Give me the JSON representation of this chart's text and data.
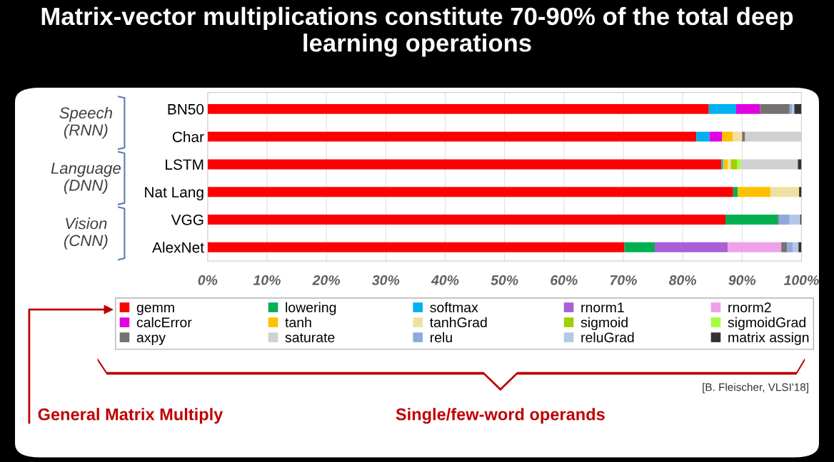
{
  "chart_data": {
    "type": "bar",
    "orientation": "horizontal",
    "stacked": true,
    "title": "Matrix-vector multiplications constitute 70-90% of the total deep learning operations",
    "categories": [
      "BN50",
      "Char",
      "LSTM",
      "Nat Lang",
      "VGG",
      "AlexNet"
    ],
    "series": [
      {
        "name": "gemm",
        "color": "#ff0000",
        "values": [
          84.4,
          82.3,
          86.5,
          88.5,
          87.2,
          70.2
        ]
      },
      {
        "name": "lowering",
        "color": "#00b050",
        "values": [
          null,
          null,
          null,
          0.8,
          8.8,
          5.1
        ]
      },
      {
        "name": "softmax",
        "color": "#00b0f0",
        "values": [
          4.6,
          2.2,
          0.3,
          null,
          null,
          null
        ]
      },
      {
        "name": "rnorm1",
        "color": "#a95fd6",
        "values": [
          null,
          null,
          null,
          null,
          null,
          12.3
        ]
      },
      {
        "name": "rnorm2",
        "color": "#f0a0e8",
        "values": [
          null,
          null,
          null,
          null,
          null,
          9.0
        ]
      },
      {
        "name": "calcError",
        "color": "#e000e0",
        "values": [
          4.0,
          2.1,
          null,
          null,
          null,
          null
        ]
      },
      {
        "name": "tanh",
        "color": "#ffc000",
        "values": [
          null,
          1.8,
          0.8,
          5.5,
          null,
          null
        ]
      },
      {
        "name": "tanhGrad",
        "color": "#f0e0a0",
        "values": [
          null,
          1.6,
          0.5,
          4.8,
          null,
          null
        ]
      },
      {
        "name": "sigmoid",
        "color": "#a0d000",
        "values": [
          null,
          null,
          1.1,
          null,
          null,
          null
        ]
      },
      {
        "name": "sigmoidGrad",
        "color": "#a0ff40",
        "values": [
          null,
          null,
          0.6,
          null,
          null,
          null
        ]
      },
      {
        "name": "axpy",
        "color": "#767171",
        "values": [
          5.0,
          0.5,
          null,
          null,
          0.2,
          1.0
        ]
      },
      {
        "name": "saturate",
        "color": "#d0d0d0",
        "values": [
          null,
          9.5,
          9.6,
          null,
          null,
          null
        ]
      },
      {
        "name": "relu",
        "color": "#8eaadb",
        "values": [
          0.4,
          null,
          null,
          null,
          1.8,
          0.9
        ]
      },
      {
        "name": "reluGrad",
        "color": "#b4c7e7",
        "values": [
          0.4,
          null,
          null,
          null,
          1.8,
          1.0
        ]
      },
      {
        "name": "matrix assign",
        "color": "#333333",
        "values": [
          1.2,
          null,
          0.6,
          0.4,
          0.2,
          0.5
        ]
      }
    ],
    "xlim": [
      0,
      100
    ],
    "xticks": [
      {
        "value": 0,
        "label": "0%"
      },
      {
        "value": 10,
        "label": "10%"
      },
      {
        "value": 20,
        "label": "20%"
      },
      {
        "value": 30,
        "label": "30%"
      },
      {
        "value": 40,
        "label": "40%"
      },
      {
        "value": 50,
        "label": "50%"
      },
      {
        "value": 60,
        "label": "60%"
      },
      {
        "value": 70,
        "label": "70%"
      },
      {
        "value": 80,
        "label": "80%"
      },
      {
        "value": 90,
        "label": "90%"
      },
      {
        "value": 100,
        "label": "100%"
      }
    ],
    "grid": "x",
    "legend": "bottom",
    "annotations": [
      "Speech\n(RNN)",
      "Language\n(DNN)",
      "Vision\n(CNN)",
      "General Matrix Multiply",
      "Single/few-word operands",
      "[B. Fleischer, VLSI'18]"
    ]
  }
}
